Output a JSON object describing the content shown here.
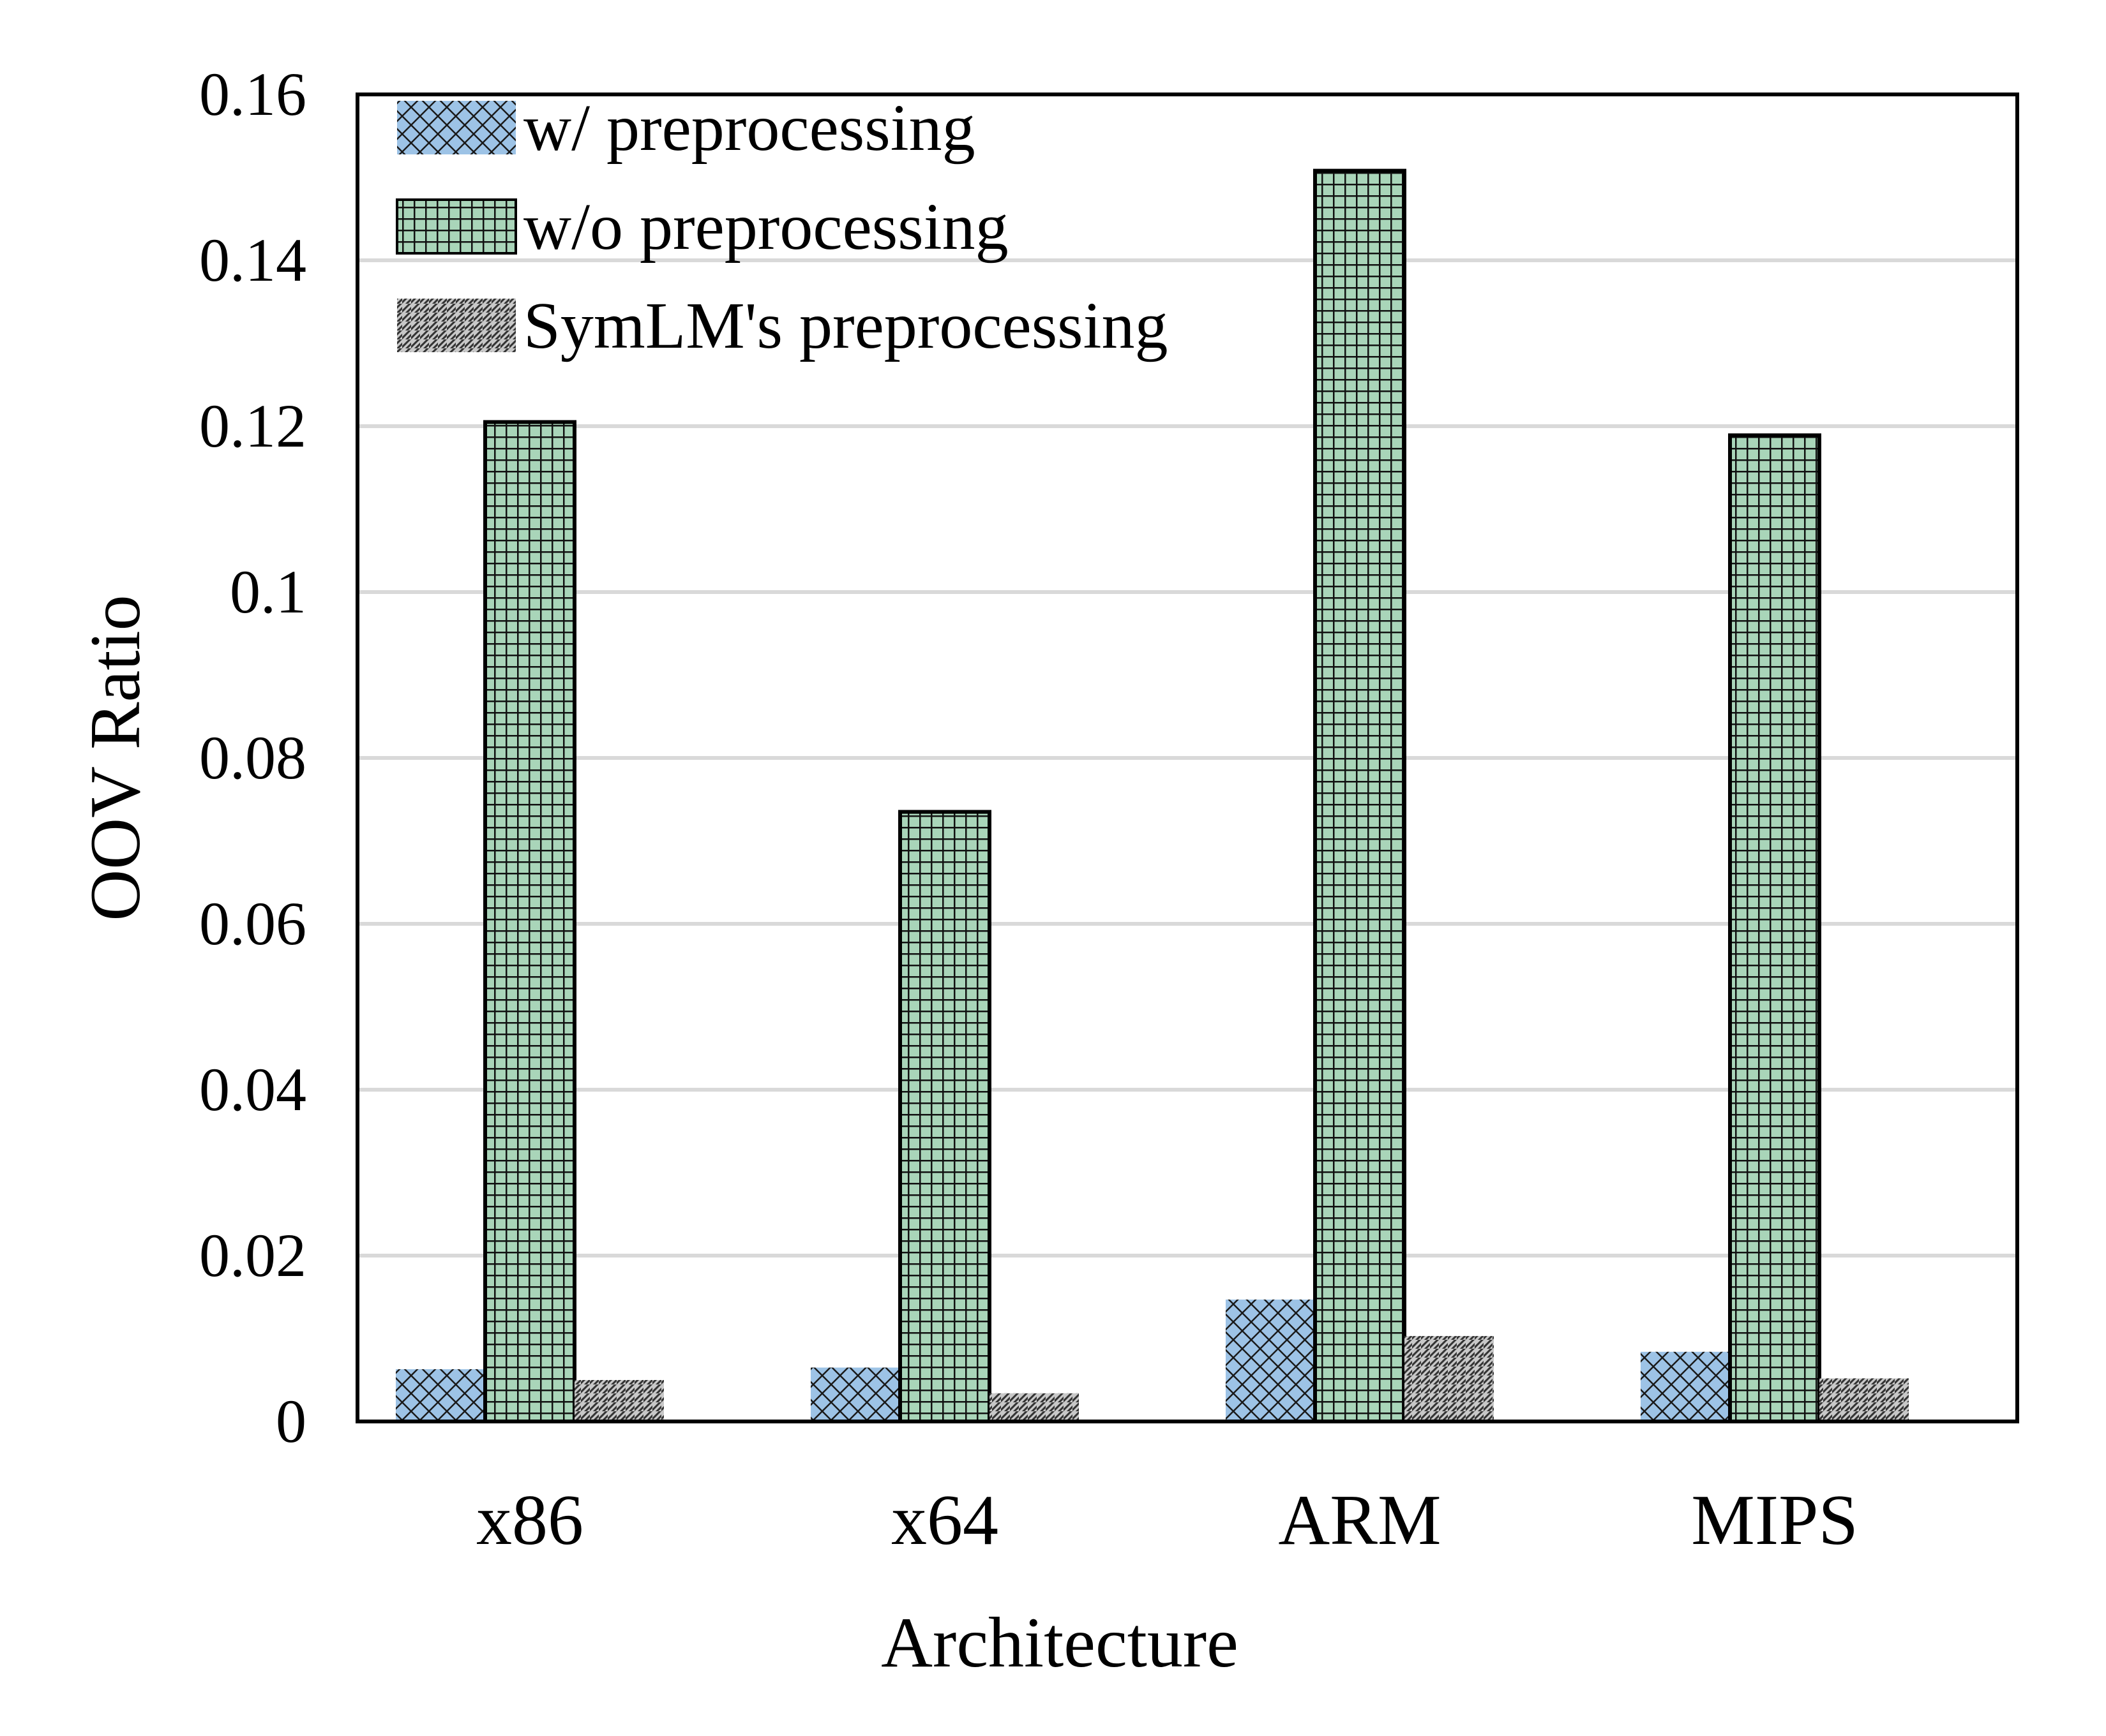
{
  "chart_data": {
    "type": "bar",
    "title": "",
    "xlabel": "Architecture",
    "ylabel": "OOV Ratio",
    "ylim": [
      0,
      0.16
    ],
    "yticks": [
      0,
      0.02,
      0.04,
      0.06,
      0.08,
      0.1,
      0.12,
      0.14,
      0.16
    ],
    "ytick_labels": [
      "0",
      "0.02",
      "0.04",
      "0.06",
      "0.08",
      "0.1",
      "0.12",
      "0.14",
      "0.16"
    ],
    "grid": true,
    "legend_position": "top-left",
    "categories": [
      "x86",
      "x64",
      "ARM",
      "MIPS"
    ],
    "series": [
      {
        "name": "w/ preprocessing",
        "values": [
          0.0063,
          0.0065,
          0.0147,
          0.0084
        ],
        "color": "#9DC3E6",
        "pattern": "crosshatch-diagonal"
      },
      {
        "name": "w/o preprocessing",
        "values": [
          0.1205,
          0.0735,
          0.1508,
          0.1189
        ],
        "color": "#A9D5B9",
        "pattern": "grid"
      },
      {
        "name": "SymLM's preprocessing",
        "values": [
          0.005,
          0.0034,
          0.0103,
          0.0052
        ],
        "color": "#C8C8C8",
        "pattern": "diagonal-stripes"
      }
    ]
  }
}
